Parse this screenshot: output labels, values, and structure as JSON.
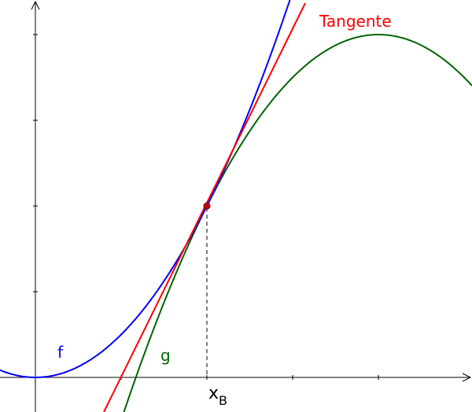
{
  "labels": {
    "f": "f",
    "g": "g",
    "tangent": "Tangente",
    "x_main": "x",
    "x_sub": "B"
  },
  "colors": {
    "f": "#0000ff",
    "g": "#006400",
    "tangent": "#ff0000",
    "axis": "#000000",
    "point": "#cc0000"
  }
}
